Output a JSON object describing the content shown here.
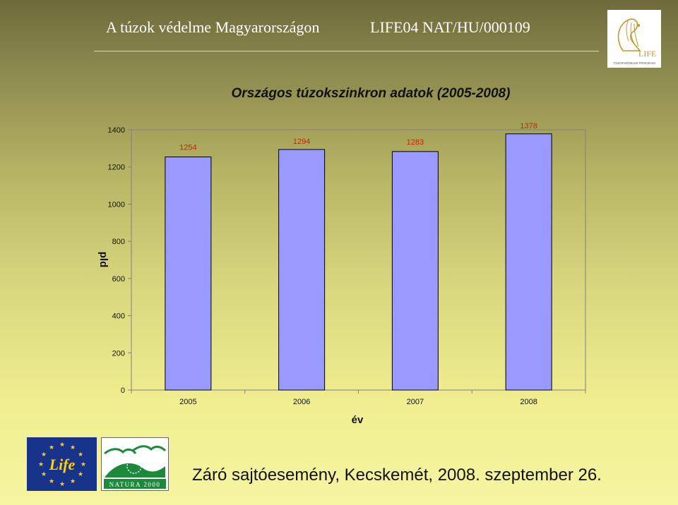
{
  "header": {
    "title": "A túzok védelme Magyarországon",
    "project_code": "LIFE04 NAT/HU/000109",
    "logo_text": "LIFE",
    "logo_subtext": "TÚZOKVÉDELMI PROGRAM"
  },
  "chart_data": {
    "type": "bar",
    "title": "Országos túzokszinkron adatok (2005-2008)",
    "xlabel": "év",
    "ylabel": "pld",
    "categories": [
      "2005",
      "2006",
      "2007",
      "2008"
    ],
    "values": [
      1254,
      1294,
      1283,
      1378
    ],
    "data_labels": [
      "1254",
      "1294",
      "1283",
      "1378"
    ],
    "ylim": [
      0,
      1400
    ],
    "yticks": [
      0,
      200,
      400,
      600,
      800,
      1000,
      1200,
      1400
    ],
    "grid": false,
    "legend": "none",
    "bar_color": "#9999ff",
    "label_color": "#cc2200"
  },
  "footer": {
    "text": "Záró sajtóesemény, Kecskemét, 2008. szeptember 26.",
    "eu_logo_text": "Life",
    "natura_logo_text": "NATURA 2000"
  },
  "colors": {
    "bar": "#9999ff",
    "data_label": "#cc2200",
    "eu_blue": "#18338a",
    "star_yellow": "#ffd200"
  }
}
